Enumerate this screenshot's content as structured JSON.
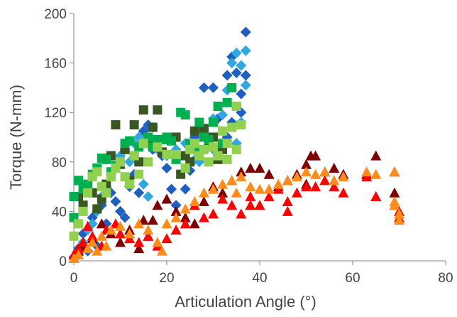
{
  "chart_data": {
    "type": "scatter",
    "title": "",
    "xlabel": "Articulation Angle (°)",
    "ylabel": "Torque (N-mm)",
    "xlim": [
      0,
      80
    ],
    "ylim": [
      0,
      200
    ],
    "xticks": [
      0,
      20,
      40,
      60,
      80
    ],
    "yticks": [
      0,
      40,
      80,
      120,
      160,
      200
    ],
    "grid": false,
    "legend": "none",
    "series": [
      {
        "marker": "diamond",
        "color": "#1F5FBF",
        "points": [
          [
            0,
            3
          ],
          [
            1,
            10
          ],
          [
            2,
            22
          ],
          [
            3,
            8
          ],
          [
            4,
            35
          ],
          [
            5,
            12
          ],
          [
            6,
            45
          ],
          [
            7,
            30
          ],
          [
            8,
            55
          ],
          [
            9,
            48
          ],
          [
            10,
            40
          ],
          [
            11,
            35
          ],
          [
            12,
            60
          ],
          [
            13,
            70
          ],
          [
            14,
            55
          ],
          [
            15,
            105
          ],
          [
            16,
            110
          ],
          [
            17,
            90
          ],
          [
            18,
            95
          ],
          [
            19,
            85
          ],
          [
            20,
            75
          ],
          [
            21,
            58
          ],
          [
            22,
            45
          ],
          [
            24,
            58
          ],
          [
            25,
            73
          ],
          [
            26,
            100
          ],
          [
            27,
            88
          ],
          [
            28,
            140
          ],
          [
            29,
            98
          ],
          [
            30,
            140
          ],
          [
            31,
            115
          ],
          [
            32,
            95
          ],
          [
            33,
            150
          ],
          [
            34,
            165
          ],
          [
            35,
            152
          ],
          [
            36,
            135
          ],
          [
            37,
            185
          ],
          [
            37,
            150
          ],
          [
            36,
            120
          ],
          [
            34,
            112
          ],
          [
            33,
            100
          ],
          [
            31,
            85
          ]
        ]
      },
      {
        "marker": "diamond",
        "color": "#2FA8E0",
        "points": [
          [
            1,
            5
          ],
          [
            2,
            15
          ],
          [
            3,
            25
          ],
          [
            4,
            30
          ],
          [
            5,
            40
          ],
          [
            6,
            52
          ],
          [
            7,
            60
          ],
          [
            8,
            70
          ],
          [
            9,
            75
          ],
          [
            10,
            85
          ],
          [
            11,
            90
          ],
          [
            12,
            80
          ],
          [
            13,
            95
          ],
          [
            14,
            100
          ],
          [
            15,
            62
          ],
          [
            16,
            52
          ],
          [
            17,
            108
          ],
          [
            18,
            90
          ],
          [
            20,
            85
          ],
          [
            22,
            90
          ],
          [
            24,
            95
          ],
          [
            26,
            82
          ],
          [
            28,
            105
          ],
          [
            30,
            115
          ],
          [
            32,
            118
          ],
          [
            33,
            138
          ],
          [
            34,
            160
          ],
          [
            35,
            168
          ],
          [
            36,
            158
          ],
          [
            37,
            170
          ],
          [
            37,
            142
          ],
          [
            36,
            112
          ],
          [
            35,
            95
          ],
          [
            30,
            90
          ],
          [
            27,
            80
          ]
        ]
      },
      {
        "marker": "square",
        "color": "#385723",
        "points": [
          [
            1,
            52
          ],
          [
            2,
            45
          ],
          [
            3,
            60
          ],
          [
            4,
            55
          ],
          [
            5,
            42
          ],
          [
            6,
            50
          ],
          [
            7,
            62
          ],
          [
            8,
            85
          ],
          [
            9,
            110
          ],
          [
            10,
            78
          ],
          [
            11,
            90
          ],
          [
            12,
            65
          ],
          [
            13,
            110
          ],
          [
            14,
            80
          ],
          [
            15,
            122
          ],
          [
            16,
            95
          ],
          [
            17,
            108
          ],
          [
            18,
            122
          ],
          [
            19,
            88
          ],
          [
            20,
            98
          ],
          [
            22,
            100
          ],
          [
            23,
            70
          ],
          [
            24,
            85
          ],
          [
            25,
            80
          ],
          [
            26,
            105
          ],
          [
            27,
            90
          ],
          [
            28,
            107
          ],
          [
            29,
            95
          ],
          [
            30,
            100
          ],
          [
            31,
            82
          ],
          [
            32,
            90
          ]
        ]
      },
      {
        "marker": "square",
        "color": "#00B050",
        "points": [
          [
            0,
            35
          ],
          [
            0,
            52
          ],
          [
            1,
            65
          ],
          [
            2,
            58
          ],
          [
            3,
            62
          ],
          [
            4,
            70
          ],
          [
            5,
            75
          ],
          [
            6,
            83
          ],
          [
            7,
            82
          ],
          [
            8,
            72
          ],
          [
            9,
            77
          ],
          [
            10,
            80
          ],
          [
            11,
            95
          ],
          [
            12,
            97
          ],
          [
            13,
            85
          ],
          [
            14,
            92
          ],
          [
            15,
            95
          ],
          [
            16,
            100
          ],
          [
            17,
            92
          ],
          [
            18,
            98
          ],
          [
            19,
            98
          ],
          [
            20,
            100
          ],
          [
            21,
            97
          ],
          [
            22,
            82
          ],
          [
            23,
            120
          ],
          [
            24,
            118
          ],
          [
            25,
            95
          ],
          [
            26,
            90
          ],
          [
            27,
            112
          ],
          [
            28,
            100
          ],
          [
            29,
            98
          ],
          [
            30,
            112
          ],
          [
            31,
            125
          ],
          [
            32,
            95
          ],
          [
            33,
            128
          ],
          [
            34,
            140
          ],
          [
            35,
            125
          ]
        ]
      },
      {
        "marker": "square",
        "color": "#92D050",
        "points": [
          [
            0,
            20
          ],
          [
            1,
            30
          ],
          [
            2,
            40
          ],
          [
            3,
            55
          ],
          [
            4,
            68
          ],
          [
            5,
            72
          ],
          [
            6,
            60
          ],
          [
            7,
            55
          ],
          [
            8,
            68
          ],
          [
            9,
            75
          ],
          [
            10,
            80
          ],
          [
            11,
            68
          ],
          [
            12,
            62
          ],
          [
            13,
            85
          ],
          [
            14,
            70
          ],
          [
            15,
            95
          ],
          [
            16,
            80
          ],
          [
            18,
            92
          ],
          [
            20,
            86
          ],
          [
            22,
            86
          ],
          [
            24,
            75
          ],
          [
            25,
            90
          ],
          [
            26,
            95
          ],
          [
            27,
            85
          ],
          [
            28,
            90
          ],
          [
            29,
            80
          ],
          [
            30,
            92
          ],
          [
            31,
            85
          ],
          [
            32,
            105
          ],
          [
            33,
            95
          ],
          [
            34,
            108
          ],
          [
            35,
            125
          ],
          [
            36,
            110
          ],
          [
            35,
            90
          ],
          [
            33,
            82
          ]
        ]
      },
      {
        "marker": "triangle",
        "color": "#7F0000",
        "points": [
          [
            0,
            5
          ],
          [
            1,
            8
          ],
          [
            2,
            12
          ],
          [
            4,
            18
          ],
          [
            6,
            30
          ],
          [
            8,
            22
          ],
          [
            10,
            15
          ],
          [
            12,
            25
          ],
          [
            14,
            10
          ],
          [
            15,
            33
          ],
          [
            16,
            20
          ],
          [
            17,
            33
          ],
          [
            18,
            45
          ],
          [
            20,
            50
          ],
          [
            22,
            40
          ],
          [
            24,
            35
          ],
          [
            26,
            30
          ],
          [
            28,
            48
          ],
          [
            30,
            60
          ],
          [
            32,
            55
          ],
          [
            34,
            65
          ],
          [
            36,
            72
          ],
          [
            38,
            75
          ],
          [
            40,
            75
          ],
          [
            42,
            70
          ],
          [
            44,
            60
          ],
          [
            46,
            65
          ],
          [
            48,
            70
          ],
          [
            50,
            78
          ],
          [
            51,
            85
          ],
          [
            52,
            85
          ],
          [
            54,
            72
          ],
          [
            56,
            75
          ],
          [
            58,
            70
          ],
          [
            63,
            70
          ],
          [
            65,
            85
          ],
          [
            65,
            52
          ],
          [
            69,
            72
          ],
          [
            69,
            55
          ],
          [
            50,
            62
          ]
        ]
      },
      {
        "marker": "triangle",
        "color": "#FF0000",
        "points": [
          [
            0,
            5
          ],
          [
            1,
            10
          ],
          [
            2,
            15
          ],
          [
            3,
            28
          ],
          [
            4,
            20
          ],
          [
            6,
            12
          ],
          [
            7,
            25
          ],
          [
            9,
            30
          ],
          [
            10,
            22
          ],
          [
            12,
            18
          ],
          [
            14,
            15
          ],
          [
            16,
            20
          ],
          [
            18,
            12
          ],
          [
            20,
            18
          ],
          [
            22,
            25
          ],
          [
            24,
            30
          ],
          [
            26,
            45
          ],
          [
            28,
            35
          ],
          [
            30,
            38
          ],
          [
            32,
            50
          ],
          [
            34,
            45
          ],
          [
            36,
            38
          ],
          [
            38,
            45
          ],
          [
            40,
            45
          ],
          [
            42,
            52
          ],
          [
            44,
            58
          ],
          [
            46,
            48
          ],
          [
            46,
            40
          ],
          [
            48,
            55
          ],
          [
            50,
            60
          ],
          [
            52,
            60
          ],
          [
            54,
            65
          ],
          [
            56,
            60
          ],
          [
            58,
            55
          ],
          [
            63,
            68
          ],
          [
            65,
            52
          ],
          [
            69,
            45
          ],
          [
            70,
            35
          ],
          [
            70,
            40
          ],
          [
            38,
            52
          ]
        ]
      },
      {
        "marker": "triangle",
        "color": "#FF8C1A",
        "points": [
          [
            0,
            2
          ],
          [
            1,
            5
          ],
          [
            3,
            10
          ],
          [
            4,
            15
          ],
          [
            5,
            8
          ],
          [
            6,
            20
          ],
          [
            7,
            12
          ],
          [
            8,
            25
          ],
          [
            10,
            28
          ],
          [
            12,
            22
          ],
          [
            14,
            30
          ],
          [
            16,
            25
          ],
          [
            18,
            15
          ],
          [
            19,
            8
          ],
          [
            20,
            30
          ],
          [
            22,
            35
          ],
          [
            24,
            42
          ],
          [
            26,
            48
          ],
          [
            28,
            55
          ],
          [
            30,
            58
          ],
          [
            32,
            62
          ],
          [
            34,
            65
          ],
          [
            36,
            68
          ],
          [
            38,
            60
          ],
          [
            40,
            58
          ],
          [
            42,
            58
          ],
          [
            44,
            62
          ],
          [
            46,
            65
          ],
          [
            48,
            68
          ],
          [
            50,
            72
          ],
          [
            52,
            70
          ],
          [
            54,
            72
          ],
          [
            56,
            65
          ],
          [
            58,
            68
          ],
          [
            63,
            72
          ],
          [
            65,
            70
          ],
          [
            69,
            72
          ],
          [
            69,
            45
          ],
          [
            70,
            38
          ],
          [
            70,
            33
          ],
          [
            69,
            48
          ],
          [
            35,
            55
          ]
        ]
      }
    ]
  }
}
